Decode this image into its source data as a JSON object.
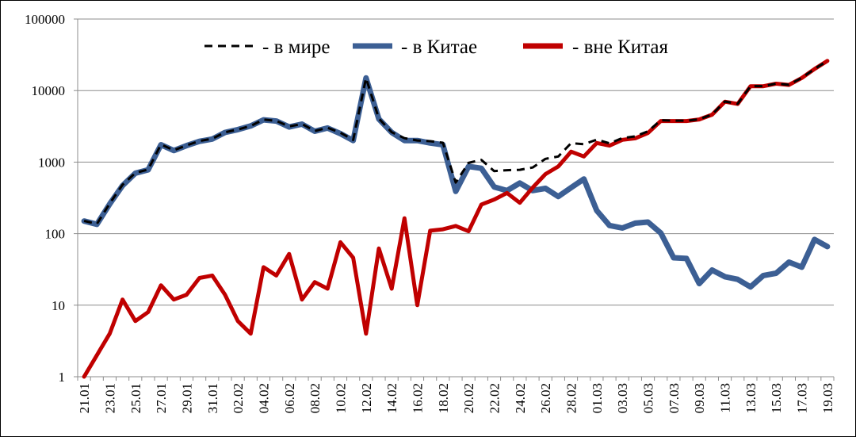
{
  "chart_data": {
    "type": "line",
    "title": "",
    "xlabel": "",
    "ylabel": "",
    "yscale": "log",
    "ylim": [
      1,
      100000
    ],
    "grid": "horizontal",
    "legend_position": "top",
    "y_tick_labels": [
      "1",
      "10",
      "100",
      "1000",
      "10000",
      "100000"
    ],
    "x_tick_labels": [
      "21.01",
      "23.01",
      "25.01",
      "27.01",
      "29.01",
      "31.01",
      "02.02",
      "04.02",
      "06.02",
      "08.02",
      "10.02",
      "12.02",
      "14.02",
      "16.02",
      "18.02",
      "20.02",
      "22.02",
      "24.02",
      "26.02",
      "28.02",
      "01.03",
      "03.03",
      "05.03",
      "07.03",
      "09.03",
      "11.03",
      "13.03",
      "15.03",
      "17.03",
      "19.03"
    ],
    "categories": [
      "21.01",
      "22.01",
      "23.01",
      "24.01",
      "25.01",
      "26.01",
      "27.01",
      "28.01",
      "29.01",
      "30.01",
      "31.01",
      "01.02",
      "02.02",
      "03.02",
      "04.02",
      "05.02",
      "06.02",
      "07.02",
      "08.02",
      "09.02",
      "10.02",
      "11.02",
      "12.02",
      "13.02",
      "14.02",
      "15.02",
      "16.02",
      "17.02",
      "18.02",
      "19.02",
      "20.02",
      "21.02",
      "22.02",
      "23.02",
      "24.02",
      "25.02",
      "26.02",
      "27.02",
      "28.02",
      "29.02",
      "01.03",
      "02.03",
      "03.03",
      "04.03",
      "05.03",
      "06.03",
      "07.03",
      "08.03",
      "09.03",
      "10.03",
      "11.03",
      "12.03",
      "13.03",
      "14.03",
      "15.03",
      "16.03",
      "17.03",
      "18.03",
      "19.03"
    ],
    "series": [
      {
        "name": "- в Китае",
        "color": "#3c5f94",
        "values": [
          150,
          135,
          260,
          470,
          700,
          780,
          1750,
          1450,
          1700,
          1950,
          2100,
          2600,
          2850,
          3200,
          3900,
          3750,
          3100,
          3400,
          2700,
          3000,
          2500,
          2000,
          15000,
          4000,
          2600,
          2000,
          2000,
          1850,
          1750,
          390,
          870,
          820,
          450,
          400,
          510,
          400,
          430,
          330,
          440,
          580,
          210,
          130,
          120,
          140,
          145,
          102,
          46,
          45,
          20,
          31,
          25,
          23,
          18,
          26,
          28,
          40,
          34,
          83,
          66
        ]
      },
      {
        "name": "- вне Китая",
        "color": "#c00000",
        "values": [
          1,
          2,
          4,
          12,
          6,
          8,
          19,
          12,
          14,
          24,
          26,
          14,
          6,
          4,
          34,
          26,
          52,
          12,
          21,
          17,
          76,
          46,
          4,
          62,
          17,
          164,
          10,
          110,
          115,
          128,
          108,
          255,
          300,
          370,
          270,
          440,
          680,
          870,
          1400,
          1200,
          1850,
          1700,
          2050,
          2150,
          2550,
          3750,
          3750,
          3750,
          3950,
          4600,
          7000,
          6500,
          11500,
          11500,
          12500,
          12000,
          15000,
          20000,
          26000
        ]
      },
      {
        "name": "- в мире",
        "color": "#000000",
        "dashed": true,
        "values": [
          151,
          137,
          264,
          482,
          706,
          788,
          1769,
          1462,
          1714,
          1974,
          2126,
          2614,
          2856,
          3204,
          3934,
          3776,
          3152,
          3412,
          2721,
          3017,
          2576,
          2046,
          15004,
          4062,
          2617,
          2164,
          2010,
          1960,
          1865,
          518,
          978,
          1075,
          750,
          770,
          780,
          840,
          1110,
          1200,
          1840,
          1780,
          2060,
          1830,
          2170,
          2290,
          2695,
          3852,
          3796,
          3795,
          3970,
          4631,
          7025,
          6523,
          11518,
          11526,
          12528,
          12040,
          15034,
          20083,
          26066
        ]
      }
    ]
  }
}
